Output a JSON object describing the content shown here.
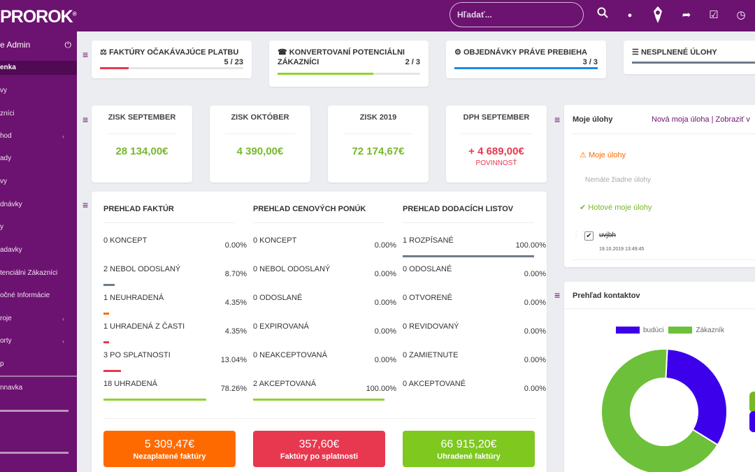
{
  "header": {
    "logo": "PROROK",
    "logo_mark": "®",
    "search_placeholder": "Hľadať..."
  },
  "sidebar": {
    "user": "e Admin",
    "items": [
      {
        "label": "enka",
        "active": true
      },
      {
        "label": "vy"
      },
      {
        "label": "zníci"
      },
      {
        "label": "hod",
        "chevron": "‹"
      },
      {
        "label": "ady"
      },
      {
        "label": "vy"
      },
      {
        "label": "dnávky"
      },
      {
        "label": "y"
      },
      {
        "label": "adavky"
      },
      {
        "label": "tenciálni Zákazníci"
      },
      {
        "label": "očné Informácie"
      },
      {
        "label": "roje",
        "chevron": "‹"
      },
      {
        "label": "orty",
        "chevron": "‹"
      },
      {
        "label": "p"
      }
    ],
    "extra": "nnavka"
  },
  "kpis": [
    {
      "icon": "⚖",
      "title": "FAKTÚRY OČAKÁVAJÚCE PLATBU",
      "count": "5 / 23",
      "pct": 22,
      "color": "#e8384f"
    },
    {
      "icon": "☎",
      "title": "KONVERTOVANÍ POTENCIÁLNI ZÁKAZNÍCI",
      "count": "2 / 3",
      "pct": 67,
      "color": "#8fd32e"
    },
    {
      "icon": "⚙",
      "title": "OBJEDNÁVKY PRÁVE PREBIEHA",
      "count": "3 / 3",
      "pct": 100,
      "color": "#1e88e5"
    },
    {
      "icon": "☰",
      "title": "NESPLNENÉ ÚLOHY",
      "count": "",
      "pct": 100,
      "color": "#6f7b88"
    }
  ],
  "stats": [
    {
      "title": "ZISK SEPTEMBER",
      "value": "28 134,00€"
    },
    {
      "title": "ZISK OKTÓBER",
      "value": "4 390,00€"
    },
    {
      "title": "ZISK 2019",
      "value": "72 174,67€"
    },
    {
      "title": "DPH SEPTEMBER",
      "value": "+ 4 689,00€",
      "sub": "POVINNOSŤ"
    }
  ],
  "overview": {
    "columns": [
      {
        "header": "PREHĽAD FAKTÚR",
        "rows": [
          {
            "label": "0 KONCEPT",
            "pct": "0.00%",
            "val": 0,
            "color": "#777"
          },
          {
            "label": "2 NEBOL ODOSLANÝ",
            "pct": "8.70%",
            "val": 8.7,
            "color": "#6f7b88"
          },
          {
            "label": "1 NEUHRADENÁ",
            "pct": "4.35%",
            "val": 4.35,
            "color": "#ff6a00"
          },
          {
            "label": "1 UHRADENÁ Z ČASTI",
            "pct": "4.35%",
            "val": 4.35,
            "color": "#e8384f"
          },
          {
            "label": "3 PO SPLATNOSTI",
            "pct": "13.04%",
            "val": 13.04,
            "color": "#e8384f"
          },
          {
            "label": "18 UHRADENÁ",
            "pct": "78.26%",
            "val": 78.26,
            "color": "#8fd32e"
          }
        ]
      },
      {
        "header": "PREHĽAD CENOVÝCH PONÚK",
        "rows": [
          {
            "label": "0 KONCEPT",
            "pct": "0.00%",
            "val": 0,
            "color": "#777"
          },
          {
            "label": "0 NEBOL ODOSLANÝ",
            "pct": "0.00%",
            "val": 0,
            "color": "#777"
          },
          {
            "label": "0 ODOSLANÉ",
            "pct": "0.00%",
            "val": 0,
            "color": "#777"
          },
          {
            "label": "0 EXPIROVANÁ",
            "pct": "0.00%",
            "val": 0,
            "color": "#777"
          },
          {
            "label": "0 NEAKCEPTOVANÁ",
            "pct": "0.00%",
            "val": 0,
            "color": "#777"
          },
          {
            "label": "2 AKCEPTOVANÁ",
            "pct": "100.00%",
            "val": 100,
            "color": "#8fd32e"
          }
        ]
      },
      {
        "header": "PREHĽAD DODACÍCH LISTOV",
        "rows": [
          {
            "label": "1 ROZPÍSANÉ",
            "pct": "100.00%",
            "val": 100,
            "color": "#6f7b88"
          },
          {
            "label": "0 ODOSLANÉ",
            "pct": "0.00%",
            "val": 0,
            "color": "#777"
          },
          {
            "label": "0 OTVORENÉ",
            "pct": "0.00%",
            "val": 0,
            "color": "#777"
          },
          {
            "label": "0 REVIDOVANÝ",
            "pct": "0.00%",
            "val": 0,
            "color": "#777"
          },
          {
            "label": "0 ZAMIETNUTE",
            "pct": "0.00%",
            "val": 0,
            "color": "#777"
          },
          {
            "label": "0 AKCEPTOVANÉ",
            "pct": "0.00%",
            "val": 0,
            "color": "#777"
          }
        ]
      }
    ],
    "buttons": [
      {
        "value": "5 309,47€",
        "label": "Nezaplatené faktúry",
        "color": "#ff6a00"
      },
      {
        "value": "357,60€",
        "label": "Faktúry po splatnosti",
        "color": "#e8384f"
      },
      {
        "value": "66 915,20€",
        "label": "Uhradené faktúry",
        "color": "#7fc820"
      }
    ]
  },
  "tasks": {
    "title": "Moje úlohy",
    "new_link": "Nová moja úloha",
    "show_link": "| Zobraziť v",
    "warning": "Moje úlohy",
    "empty": "Nemáte žiadne úlohy",
    "done": "Hotové moje úlohy",
    "task_name": "uvjbh",
    "task_date": "19.10.2019 13:49:45"
  },
  "contacts": {
    "title": "Prehľad kontaktov",
    "chart_data": {
      "type": "pie",
      "title": "Prehľad kontaktov",
      "legend": [
        "budúci",
        "Zákazník"
      ],
      "series": [
        {
          "name": "budúci",
          "value": 33,
          "color": "#3d00ea"
        },
        {
          "name": "Zákazník",
          "value": 67,
          "color": "#6dc03a"
        }
      ]
    }
  }
}
